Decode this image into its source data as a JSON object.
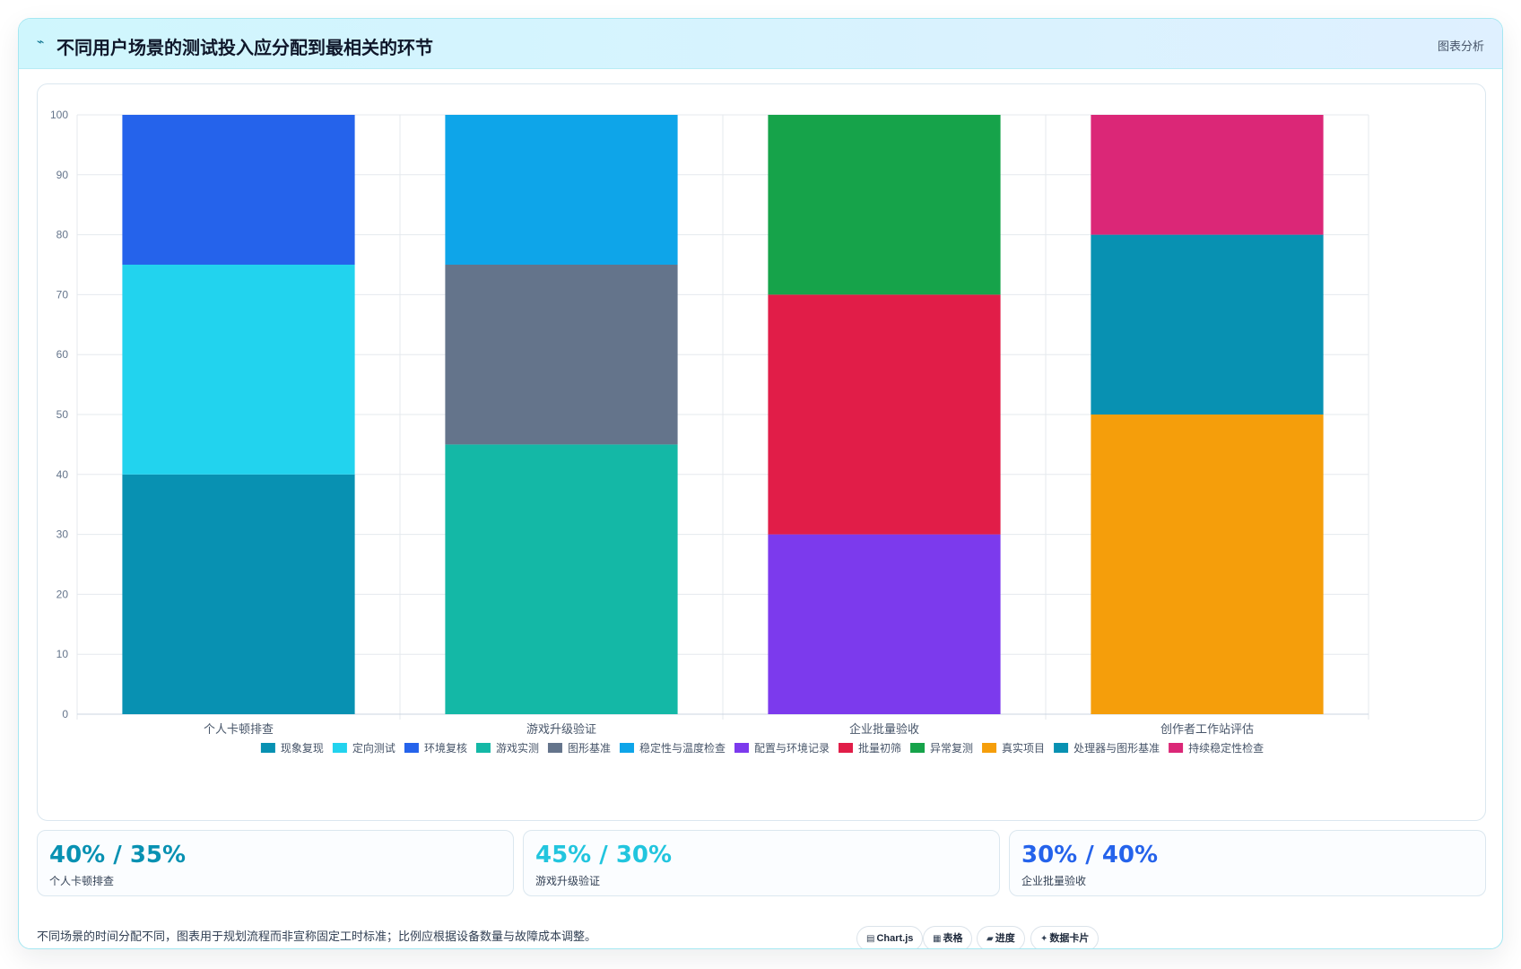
{
  "header": {
    "icon": "chart-line-icon",
    "title": "不同用户场景的测试投入应分配到最相关的环节",
    "tag": "图表分析"
  },
  "chart_data": {
    "type": "bar",
    "stacked": true,
    "categories": [
      "个人卡顿排查",
      "游戏升级验证",
      "企业批量验收",
      "创作者工作站评估"
    ],
    "ylim": [
      0,
      100
    ],
    "yticks": [
      0,
      10,
      20,
      30,
      40,
      50,
      60,
      70,
      80,
      90,
      100
    ],
    "grid": true,
    "legend_position": "bottom",
    "segments": [
      {
        "category": 0,
        "name": "现象复现",
        "value": 40,
        "color": "#0891b2"
      },
      {
        "category": 0,
        "name": "定向测试",
        "value": 35,
        "color": "#22d3ee"
      },
      {
        "category": 0,
        "name": "环境复核",
        "value": 25,
        "color": "#2563eb"
      },
      {
        "category": 1,
        "name": "游戏实测",
        "value": 45,
        "color": "#14b8a6"
      },
      {
        "category": 1,
        "name": "图形基准",
        "value": 30,
        "color": "#64748b"
      },
      {
        "category": 1,
        "name": "稳定性与温度检查",
        "value": 25,
        "color": "#0ea5e9"
      },
      {
        "category": 2,
        "name": "配置与环境记录",
        "value": 30,
        "color": "#7c3aed"
      },
      {
        "category": 2,
        "name": "批量初筛",
        "value": 40,
        "color": "#e11d48"
      },
      {
        "category": 2,
        "name": "异常复测",
        "value": 30,
        "color": "#16a34a"
      },
      {
        "category": 3,
        "name": "真实项目",
        "value": 50,
        "color": "#f59e0b"
      },
      {
        "category": 3,
        "name": "处理器与图形基准",
        "value": 30,
        "color": "#0891b2"
      },
      {
        "category": 3,
        "name": "持续稳定性检查",
        "value": 20,
        "color": "#db2777"
      }
    ]
  },
  "stats": [
    {
      "value": "40% / 35%",
      "label": "个人卡顿排查",
      "color": "#0891b2"
    },
    {
      "value": "45% / 30%",
      "label": "游戏升级验证",
      "color": "#22c5de"
    },
    {
      "value": "30% / 40%",
      "label": "企业批量验收",
      "color": "#2563eb"
    }
  ],
  "footer": {
    "note": "不同场景的时间分配不同，图表用于规划流程而非宣称固定工时标准；比例应根据设备数量与故障成本调整。",
    "chips": [
      {
        "icon": "chart-icon",
        "label": "Chart.js"
      },
      {
        "icon": "table-icon",
        "label": "表格"
      },
      {
        "icon": "progress-icon",
        "label": "进度"
      },
      {
        "icon": "sparkle-icon",
        "label": "数据卡片"
      }
    ]
  }
}
